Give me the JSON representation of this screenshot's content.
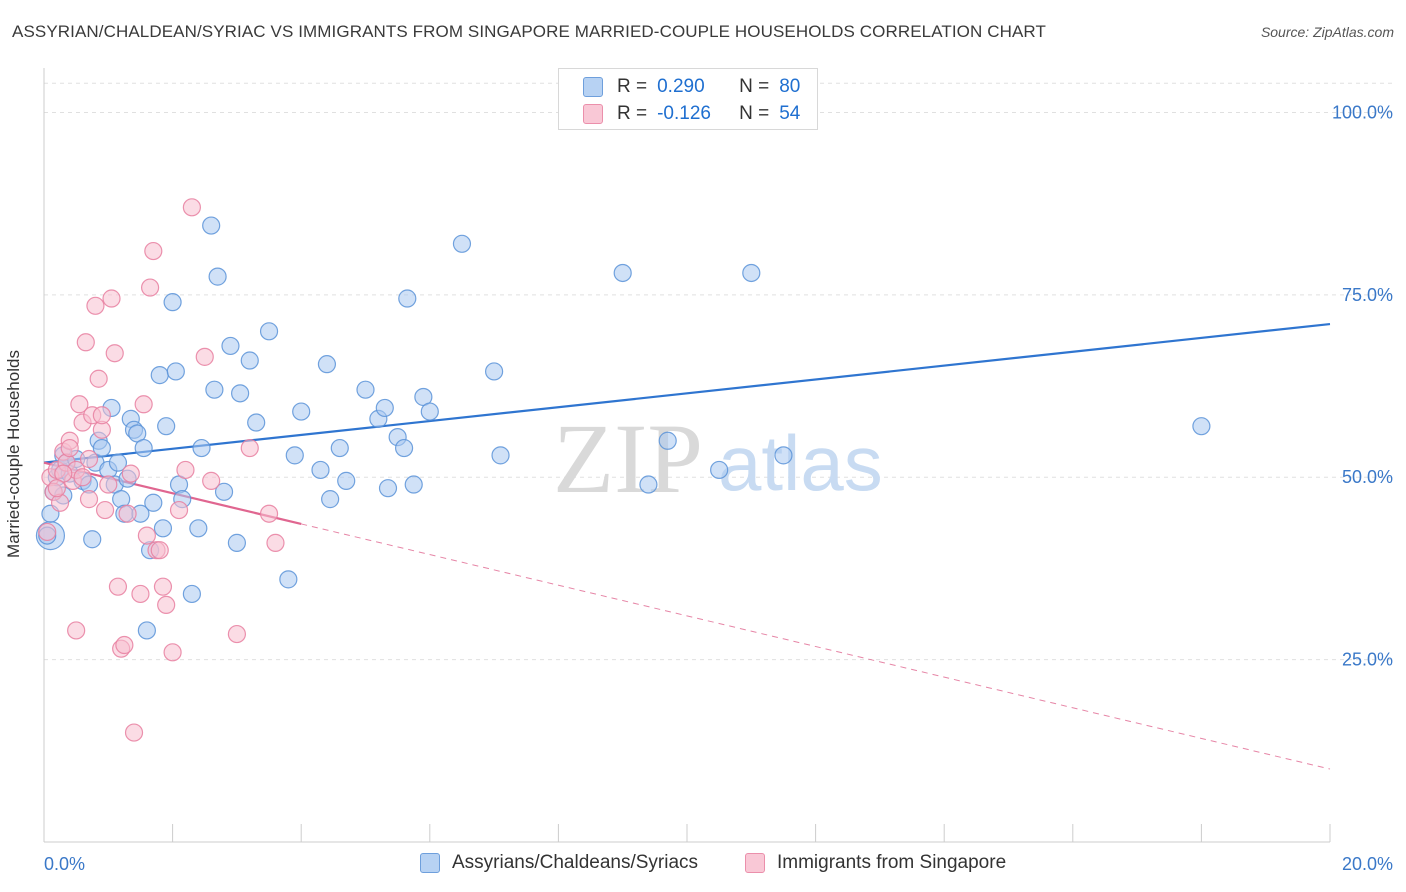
{
  "header": {
    "title": "ASSYRIAN/CHALDEAN/SYRIAC VS IMMIGRANTS FROM SINGAPORE MARRIED-COUPLE HOUSEHOLDS CORRELATION CHART",
    "source": "Source: ZipAtlas.com"
  },
  "legend": {
    "r_label": "R =",
    "n_label": "N =",
    "series": [
      {
        "r": "0.290",
        "n": "80"
      },
      {
        "r": "-0.126",
        "n": "54"
      }
    ]
  },
  "bottom_legend": {
    "items": [
      "Assyrians/Chaldeans/Syriacs",
      "Immigrants from Singapore"
    ]
  },
  "watermark": {
    "part1": "ZIP",
    "part2": "atlas"
  },
  "colors": {
    "blue_fill": "#a9c8f0",
    "blue_stroke": "#5b93d8",
    "blue_line": "#2f75d0",
    "pink_fill": "#f7bfd0",
    "pink_stroke": "#e87fa0",
    "pink_line": "#e06690",
    "axis_text": "#3a78c8",
    "grid": "#e0e0e0"
  },
  "chart_data": {
    "type": "scatter",
    "title": "ASSYRIAN/CHALDEAN/SYRIAC VS IMMIGRANTS FROM SINGAPORE MARRIED-COUPLE HOUSEHOLDS CORRELATION CHART",
    "xlabel": "",
    "ylabel": "Married-couple Households",
    "xlim": [
      0,
      20
    ],
    "ylim": [
      0,
      105
    ],
    "x_tick_labels": [
      "0.0%",
      "20.0%"
    ],
    "y_ticks": [
      25,
      50,
      75,
      100
    ],
    "y_tick_labels": [
      "25.0%",
      "50.0%",
      "75.0%",
      "100.0%"
    ],
    "grid": true,
    "series": [
      {
        "name": "Assyrians/Chaldeans/Syriacs",
        "color": "#5b93d8",
        "r": 0.29,
        "n": 80,
        "trend": {
          "x": [
            0,
            20
          ],
          "y": [
            52.0,
            71.0
          ],
          "style": "solid"
        },
        "points": [
          [
            0.1,
            42.0
          ],
          [
            0.1,
            45.0
          ],
          [
            0.15,
            48.0
          ],
          [
            0.2,
            50.0
          ],
          [
            0.25,
            51.0
          ],
          [
            0.3,
            53.0
          ],
          [
            0.35,
            52.0
          ],
          [
            0.4,
            50.5
          ],
          [
            0.5,
            52.5
          ],
          [
            0.6,
            49.5
          ],
          [
            0.7,
            49.0
          ],
          [
            0.75,
            41.5
          ],
          [
            0.8,
            52.0
          ],
          [
            0.85,
            55.0
          ],
          [
            0.9,
            54.0
          ],
          [
            1.0,
            51.0
          ],
          [
            1.05,
            59.5
          ],
          [
            1.1,
            49.0
          ],
          [
            1.15,
            52.0
          ],
          [
            1.2,
            47.0
          ],
          [
            1.25,
            45.0
          ],
          [
            1.3,
            49.8
          ],
          [
            1.35,
            58.0
          ],
          [
            1.4,
            56.5
          ],
          [
            1.45,
            56.0
          ],
          [
            1.5,
            45.0
          ],
          [
            1.55,
            54.0
          ],
          [
            1.6,
            29.0
          ],
          [
            1.65,
            40.0
          ],
          [
            1.7,
            46.5
          ],
          [
            1.8,
            64.0
          ],
          [
            1.85,
            43.0
          ],
          [
            1.9,
            57.0
          ],
          [
            2.0,
            74.0
          ],
          [
            2.05,
            64.5
          ],
          [
            2.1,
            49.0
          ],
          [
            2.15,
            47.0
          ],
          [
            2.3,
            34.0
          ],
          [
            2.4,
            43.0
          ],
          [
            2.45,
            54.0
          ],
          [
            2.6,
            84.5
          ],
          [
            2.65,
            62.0
          ],
          [
            2.7,
            77.5
          ],
          [
            2.8,
            48.0
          ],
          [
            2.9,
            68.0
          ],
          [
            3.0,
            41.0
          ],
          [
            3.05,
            61.5
          ],
          [
            3.2,
            66.0
          ],
          [
            3.3,
            57.5
          ],
          [
            3.5,
            70.0
          ],
          [
            3.8,
            36.0
          ],
          [
            3.9,
            53.0
          ],
          [
            4.0,
            59.0
          ],
          [
            4.3,
            51.0
          ],
          [
            4.4,
            65.5
          ],
          [
            4.45,
            47.0
          ],
          [
            4.6,
            54.0
          ],
          [
            4.7,
            49.5
          ],
          [
            5.0,
            62.0
          ],
          [
            5.2,
            58.0
          ],
          [
            5.3,
            59.5
          ],
          [
            5.35,
            48.5
          ],
          [
            5.5,
            55.5
          ],
          [
            5.6,
            54.0
          ],
          [
            5.65,
            74.5
          ],
          [
            5.75,
            49.0
          ],
          [
            5.9,
            61.0
          ],
          [
            6.0,
            59.0
          ],
          [
            6.5,
            82.0
          ],
          [
            7.0,
            64.5
          ],
          [
            7.1,
            53.0
          ],
          [
            9.0,
            78.0
          ],
          [
            9.4,
            49.0
          ],
          [
            9.7,
            55.0
          ],
          [
            10.5,
            51.0
          ],
          [
            11.0,
            78.0
          ],
          [
            11.5,
            53.0
          ],
          [
            18.0,
            57.0
          ],
          [
            0.05,
            42.0
          ],
          [
            0.3,
            47.5
          ]
        ]
      },
      {
        "name": "Immigrants from Singapore",
        "color": "#e87fa0",
        "r": -0.126,
        "n": 54,
        "trend": {
          "x": [
            0,
            4.0
          ],
          "y": [
            52.0,
            43.6
          ],
          "style": "solid",
          "extended": {
            "x": [
              4.0,
              20
            ],
            "y": [
              43.6,
              10.0
            ],
            "style": "dashed"
          }
        },
        "points": [
          [
            0.05,
            42.5
          ],
          [
            0.1,
            50.0
          ],
          [
            0.15,
            48.0
          ],
          [
            0.2,
            51.0
          ],
          [
            0.25,
            46.5
          ],
          [
            0.3,
            53.5
          ],
          [
            0.35,
            52.0
          ],
          [
            0.4,
            55.0
          ],
          [
            0.45,
            49.5
          ],
          [
            0.5,
            51.0
          ],
          [
            0.55,
            60.0
          ],
          [
            0.6,
            57.5
          ],
          [
            0.65,
            68.5
          ],
          [
            0.7,
            52.5
          ],
          [
            0.75,
            58.5
          ],
          [
            0.8,
            73.5
          ],
          [
            0.85,
            63.5
          ],
          [
            0.9,
            56.5
          ],
          [
            0.95,
            45.5
          ],
          [
            1.0,
            49.0
          ],
          [
            1.05,
            74.5
          ],
          [
            1.1,
            67.0
          ],
          [
            1.15,
            35.0
          ],
          [
            1.2,
            26.5
          ],
          [
            1.25,
            27.0
          ],
          [
            1.3,
            45.0
          ],
          [
            1.35,
            50.5
          ],
          [
            1.4,
            15.0
          ],
          [
            1.5,
            34.0
          ],
          [
            1.55,
            60.0
          ],
          [
            1.6,
            42.0
          ],
          [
            1.65,
            76.0
          ],
          [
            1.7,
            81.0
          ],
          [
            1.75,
            40.0
          ],
          [
            1.8,
            40.0
          ],
          [
            1.85,
            35.0
          ],
          [
            1.9,
            32.5
          ],
          [
            2.0,
            26.0
          ],
          [
            2.1,
            45.5
          ],
          [
            2.2,
            51.0
          ],
          [
            2.3,
            87.0
          ],
          [
            2.5,
            66.5
          ],
          [
            2.6,
            49.5
          ],
          [
            3.0,
            28.5
          ],
          [
            3.2,
            54.0
          ],
          [
            3.5,
            45.0
          ],
          [
            3.6,
            41.0
          ],
          [
            0.5,
            29.0
          ],
          [
            0.7,
            47.0
          ],
          [
            0.9,
            58.5
          ],
          [
            0.3,
            50.5
          ],
          [
            0.4,
            54.0
          ],
          [
            0.2,
            48.5
          ],
          [
            0.6,
            50.0
          ]
        ]
      }
    ]
  }
}
